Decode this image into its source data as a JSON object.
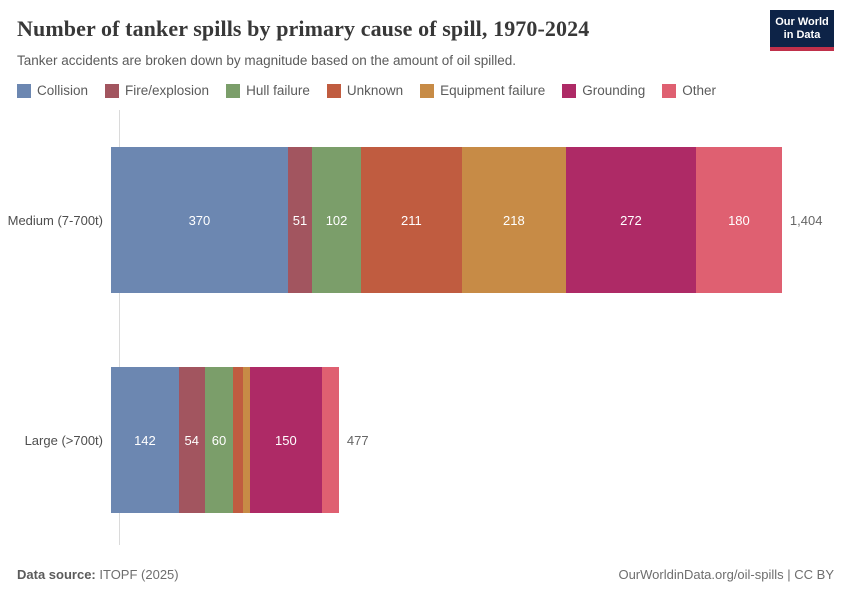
{
  "header": {
    "title": "Number of tanker spills by primary cause of spill, 1970-2024",
    "subtitle": "Tanker accidents are broken down by magnitude based on the amount of oil spilled.",
    "logo": {
      "line1": "Our World",
      "line2": "in Data",
      "bg_color": "#0d2347",
      "accent_color": "#c0304a"
    }
  },
  "chart_data": {
    "type": "bar",
    "orientation": "horizontal",
    "stacked": true,
    "grid": false,
    "legend_position": "top",
    "categories": [
      "Medium (7-700t)",
      "Large (>700t)"
    ],
    "series": [
      {
        "name": "Collision",
        "color": "#6c87b1",
        "values": [
          370,
          142
        ]
      },
      {
        "name": "Fire/explosion",
        "color": "#a2555f",
        "values": [
          51,
          54
        ]
      },
      {
        "name": "Hull failure",
        "color": "#7b9e6a",
        "values": [
          102,
          60
        ]
      },
      {
        "name": "Unknown",
        "color": "#c05c40",
        "values": [
          211,
          20
        ]
      },
      {
        "name": "Equipment failure",
        "color": "#c78b46",
        "values": [
          218,
          15
        ]
      },
      {
        "name": "Grounding",
        "color": "#ae2a66",
        "values": [
          272,
          150
        ]
      },
      {
        "name": "Other",
        "color": "#df6071",
        "values": [
          180,
          36
        ]
      }
    ],
    "totals": [
      1404,
      477
    ],
    "total_labels": [
      "1,404",
      "477"
    ],
    "xlim": [
      0,
      1404
    ],
    "value_label_style": "white, centered inside segment, hidden when segment is too narrow"
  },
  "footer": {
    "source_label": "Data source:",
    "source_value": "ITOPF (2025)",
    "right_text": "OurWorldinData.org/oil-spills | CC BY"
  }
}
